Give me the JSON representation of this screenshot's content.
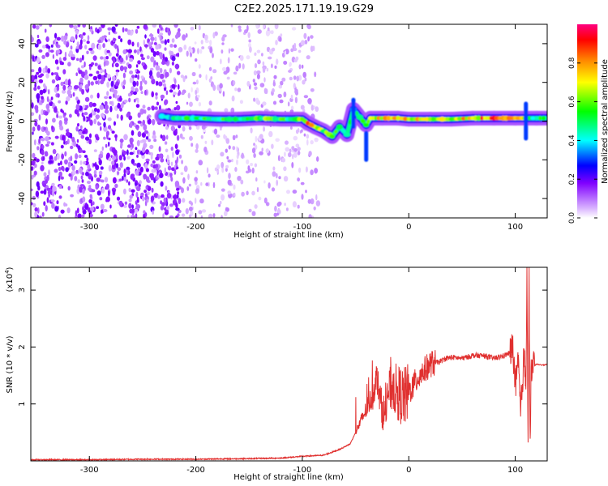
{
  "figure_title": "C2E2.2025.171.19.19.G29",
  "chart_data": [
    {
      "type": "heatmap",
      "title": "",
      "xlabel": "Height of straight line (km)",
      "ylabel": "Frequency (Hz)",
      "xlim": [
        -355,
        130
      ],
      "ylim": [
        -50,
        50
      ],
      "xticks": [
        -300,
        -200,
        -100,
        0,
        100
      ],
      "yticks": [
        -40,
        -20,
        0,
        20,
        40
      ],
      "colorbar": {
        "label": "Normalized spectral amplitude",
        "ticks": [
          "0.0",
          "0.2",
          "0.4",
          "0.6",
          "0.8"
        ],
        "range": [
          0,
          1
        ],
        "colormap": [
          "#ffffff",
          "#c080ff",
          "#8000ff",
          "#0000ff",
          "#00ffff",
          "#00ff00",
          "#ffff00",
          "#ff8000",
          "#ff0000",
          "#ff0080"
        ]
      },
      "noise_region": {
        "x_range": [
          -355,
          -85
        ],
        "dense_until": -215,
        "y_range": [
          -50,
          50
        ]
      },
      "ridge": [
        {
          "x": -232,
          "y": 2.5,
          "a": 0.35
        },
        {
          "x": -220,
          "y": 1.5,
          "a": 0.45
        },
        {
          "x": -200,
          "y": 1.5,
          "a": 0.55
        },
        {
          "x": -180,
          "y": 1.0,
          "a": 0.5
        },
        {
          "x": -160,
          "y": 1.0,
          "a": 0.55
        },
        {
          "x": -140,
          "y": 1.5,
          "a": 0.6
        },
        {
          "x": -120,
          "y": 1.0,
          "a": 0.55
        },
        {
          "x": -105,
          "y": 1.0,
          "a": 0.5
        },
        {
          "x": -100,
          "y": 1.0,
          "a": 0.7
        },
        {
          "x": -95,
          "y": -1.0,
          "a": 0.8
        },
        {
          "x": -88,
          "y": -3.0,
          "a": 0.7
        },
        {
          "x": -80,
          "y": -5.0,
          "a": 0.65
        },
        {
          "x": -72,
          "y": -8.0,
          "a": 0.55
        },
        {
          "x": -65,
          "y": -3.0,
          "a": 0.5
        },
        {
          "x": -58,
          "y": -7.0,
          "a": 0.55
        },
        {
          "x": -52,
          "y": 6.0,
          "a": 0.45
        },
        {
          "x": -46,
          "y": 2.0,
          "a": 0.55
        },
        {
          "x": -40,
          "y": -2.0,
          "a": 0.5
        },
        {
          "x": -36,
          "y": 1.5,
          "a": 0.7
        },
        {
          "x": -25,
          "y": 1.5,
          "a": 0.8
        },
        {
          "x": -10,
          "y": 1.5,
          "a": 0.7
        },
        {
          "x": 0,
          "y": 1.0,
          "a": 0.75
        },
        {
          "x": 20,
          "y": 1.0,
          "a": 0.7
        },
        {
          "x": 40,
          "y": 1.0,
          "a": 0.65
        },
        {
          "x": 60,
          "y": 1.5,
          "a": 0.8
        },
        {
          "x": 80,
          "y": 1.5,
          "a": 0.85
        },
        {
          "x": 100,
          "y": 1.5,
          "a": 0.75
        },
        {
          "x": 110,
          "y": 1.5,
          "a": 0.6
        },
        {
          "x": 120,
          "y": 1.5,
          "a": 0.5
        },
        {
          "x": 130,
          "y": 1.5,
          "a": 0.5
        }
      ]
    },
    {
      "type": "line",
      "title": "",
      "xlabel": "Height of straight line (km)",
      "ylabel": "SNR (10 * v/v)",
      "y_scale_label": "(x10",
      "y_scale_exp": "4",
      "y_scale_close": ")",
      "xlim": [
        -355,
        130
      ],
      "ylim": [
        0,
        3.4
      ],
      "xticks": [
        -300,
        -200,
        -100,
        0,
        100
      ],
      "yticks": [
        1,
        2,
        3
      ],
      "series": [
        {
          "color": "#e0302f",
          "x": [
            -355,
            -300,
            -250,
            -200,
            -150,
            -120,
            -100,
            -80,
            -65,
            -55,
            -50,
            -45,
            -40,
            -35,
            -32,
            -30,
            -28,
            -25,
            -22,
            -20,
            -15,
            -10,
            -5,
            0,
            5,
            10,
            15,
            20,
            25,
            30,
            35,
            40,
            50,
            60,
            70,
            80,
            90,
            95,
            98,
            100,
            103,
            105,
            108,
            110,
            111,
            112,
            113,
            114,
            115,
            116,
            120,
            125,
            130
          ],
          "y": [
            0.02,
            0.02,
            0.03,
            0.03,
            0.04,
            0.05,
            0.08,
            0.1,
            0.2,
            0.3,
            0.5,
            0.7,
            0.9,
            1.1,
            1.3,
            1.5,
            1.2,
            0.9,
            0.8,
            1.2,
            1.3,
            1.2,
            1.1,
            1.2,
            1.35,
            1.5,
            1.6,
            1.7,
            1.72,
            1.75,
            1.8,
            1.82,
            1.8,
            1.85,
            1.85,
            1.8,
            1.85,
            1.9,
            2.0,
            1.3,
            1.7,
            0.8,
            1.8,
            1.5,
            3.35,
            0.4,
            3.15,
            0.2,
            1.7,
            1.65,
            1.7,
            1.68,
            1.7
          ],
          "noisy_region": [
            -50,
            118
          ]
        }
      ]
    }
  ]
}
